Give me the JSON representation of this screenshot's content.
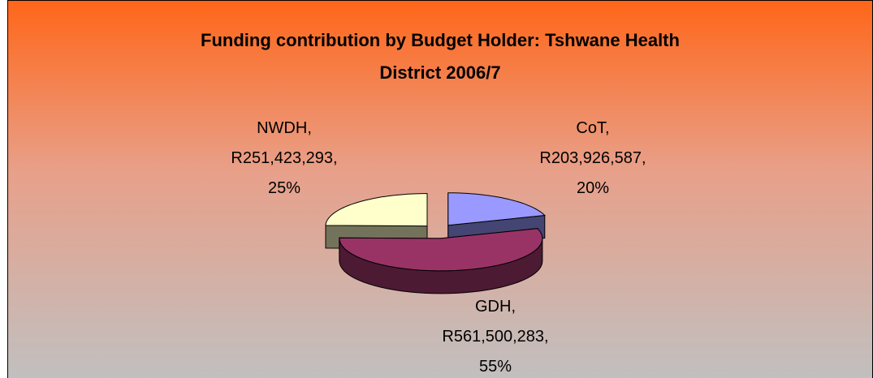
{
  "chart_data": {
    "type": "pie",
    "title": "Funding contribution by Budget Holder: Tshwane Health District 2006/7",
    "categories": [
      "CoT",
      "GDH",
      "NWDH"
    ],
    "values": [
      203926587,
      561500283,
      251423293
    ],
    "value_labels": [
      "R203,926,587",
      "R561,500,283",
      "R251,423,293"
    ],
    "percentage_labels": [
      "20%",
      "55%",
      "25%"
    ],
    "label_separator": ",",
    "colors": [
      "#9999ff",
      "#993366",
      "#ffffcc"
    ]
  }
}
